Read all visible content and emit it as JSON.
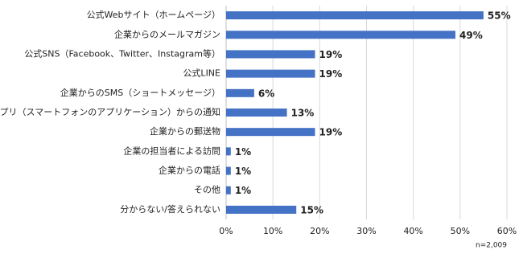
{
  "chart_data": {
    "type": "bar",
    "orientation": "horizontal",
    "categories": [
      "公式Webサイト（ホームページ）",
      "企業からのメールマガジン",
      "公式SNS（Facebook、Twitter、Instagram等）",
      "公式LINE",
      "企業からのSMS（ショートメッセージ）",
      "公式アプリ（スマートフォンのアプリケーション）からの通知",
      "企業からの郵送物",
      "企業の担当者による訪問",
      "企業からの電話",
      "その他",
      "分からない/答えられない"
    ],
    "values": [
      55,
      49,
      19,
      19,
      6,
      13,
      19,
      1,
      1,
      1,
      15
    ],
    "value_labels": [
      "55%",
      "49%",
      "19%",
      "19%",
      "6%",
      "13%",
      "19%",
      "1%",
      "1%",
      "1%",
      "15%"
    ],
    "color": "#4472c4",
    "xlim": [
      0,
      60
    ],
    "xticks": [
      {
        "value": 0,
        "label": "0%"
      },
      {
        "value": 10,
        "label": "10%"
      },
      {
        "value": 20,
        "label": "20%"
      },
      {
        "value": 30,
        "label": "30%"
      },
      {
        "value": 40,
        "label": "40%"
      },
      {
        "value": 50,
        "label": "50%"
      },
      {
        "value": 60,
        "label": "60%"
      }
    ],
    "grid": true,
    "annotation": "n=2,009"
  }
}
